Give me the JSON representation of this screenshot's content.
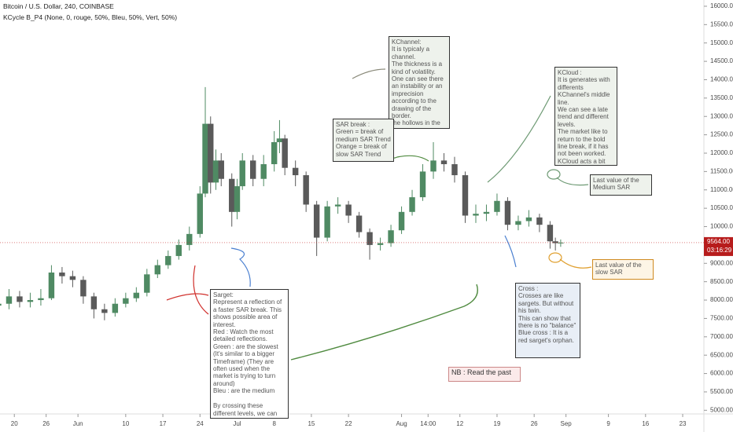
{
  "chart_data": {
    "type": "candlestick",
    "title": "Bitcoin / U.S. Dollar, 240, COINBASE",
    "indicator": "KCycle B_P4 (None, 0, rouge, 50%, Bleu, 50%, Vert, 50%)",
    "up_color": "#4f8a63",
    "down_color": "#5a5a5a",
    "x": [
      17,
      19,
      21,
      23,
      25,
      27,
      29,
      31,
      33,
      35,
      37,
      39,
      41,
      43,
      45,
      47,
      49,
      51,
      53,
      55,
      56,
      57,
      58,
      59,
      61,
      62,
      63,
      65,
      67,
      69,
      70,
      71,
      73,
      75,
      77,
      79,
      81,
      83,
      85,
      87,
      89,
      91,
      93,
      95,
      97,
      99,
      101,
      103,
      105,
      107,
      109,
      111,
      113,
      115,
      117,
      119,
      121,
      122,
      123
    ],
    "open": [
      7850,
      7900,
      8100,
      7950,
      8000,
      8050,
      8750,
      8650,
      8550,
      8100,
      7750,
      7650,
      7900,
      8050,
      8200,
      8700,
      8950,
      9200,
      9500,
      9800,
      10900,
      12800,
      11200,
      11800,
      11300,
      10400,
      11100,
      11800,
      11300,
      11700,
      12300,
      12400,
      11600,
      11400,
      10600,
      9700,
      10550,
      10600,
      10300,
      9850,
      9500,
      9550,
      9900,
      10400,
      10800,
      11500,
      11800,
      11700,
      11400,
      10300,
      10350,
      10400,
      10700,
      10050,
      10150,
      10250,
      10050,
      9600,
      9550
    ],
    "high": [
      8150,
      8300,
      8250,
      8200,
      8300,
      8950,
      8900,
      8800,
      8650,
      8200,
      7900,
      8050,
      8200,
      8350,
      8850,
      9100,
      9350,
      9650,
      10000,
      11100,
      13800,
      13000,
      12100,
      12000,
      11450,
      11300,
      12000,
      11950,
      11950,
      12600,
      12900,
      12500,
      11800,
      11500,
      10700,
      10700,
      10800,
      10700,
      10400,
      9950,
      9700,
      10050,
      10550,
      11000,
      11700,
      12300,
      12000,
      11900,
      11500,
      10600,
      10600,
      10900,
      10800,
      10300,
      10450,
      10350,
      10150,
      9700,
      9650
    ],
    "low": [
      7650,
      7750,
      7800,
      7800,
      7850,
      8000,
      8450,
      8350,
      7900,
      7500,
      7450,
      7550,
      7800,
      7950,
      8100,
      8600,
      8850,
      9100,
      9350,
      9700,
      10800,
      10900,
      11000,
      11100,
      10000,
      10200,
      11000,
      11100,
      11100,
      11500,
      12000,
      11400,
      11100,
      10400,
      9200,
      9600,
      10350,
      10100,
      9700,
      9100,
      9350,
      9450,
      9800,
      10300,
      10700,
      11300,
      11500,
      11200,
      10100,
      10100,
      10150,
      10300,
      9900,
      9900,
      10000,
      9850,
      9400,
      9350,
      9450
    ],
    "close": [
      7900,
      8100,
      7950,
      8000,
      8050,
      8750,
      8650,
      8550,
      8100,
      7750,
      7650,
      7900,
      8050,
      8200,
      8700,
      8950,
      9200,
      9500,
      9800,
      10900,
      12800,
      11200,
      11800,
      11300,
      10400,
      11100,
      11800,
      11300,
      11700,
      12300,
      12400,
      11600,
      11400,
      10600,
      9700,
      10550,
      10600,
      10300,
      9850,
      9500,
      9550,
      9900,
      10400,
      10800,
      11500,
      11800,
      11700,
      11400,
      10300,
      10350,
      10400,
      10700,
      10050,
      10150,
      10250,
      10050,
      9600,
      9550,
      9564
    ],
    "xlim": [
      17.3,
      150
    ],
    "xticks": [
      {
        "value": 20,
        "label": "20"
      },
      {
        "value": 26,
        "label": "26"
      },
      {
        "value": 32,
        "label": "Jun"
      },
      {
        "value": 41,
        "label": "10"
      },
      {
        "value": 48,
        "label": "17"
      },
      {
        "value": 55,
        "label": "24"
      },
      {
        "value": 62,
        "label": "Jul"
      },
      {
        "value": 69,
        "label": "8"
      },
      {
        "value": 76,
        "label": "15"
      },
      {
        "value": 83,
        "label": "22"
      },
      {
        "value": 93,
        "label": "Aug"
      },
      {
        "value": 98,
        "label": "14:00"
      },
      {
        "value": 104,
        "label": "12"
      },
      {
        "value": 111,
        "label": "19"
      },
      {
        "value": 118,
        "label": "26"
      },
      {
        "value": 124,
        "label": "Sep"
      },
      {
        "value": 132,
        "label": "9"
      },
      {
        "value": 139,
        "label": "16"
      },
      {
        "value": 146,
        "label": "23"
      }
    ],
    "ylim": [
      4900,
      16170
    ],
    "yticks": [
      {
        "value": 5000,
        "label": "5000.00"
      },
      {
        "value": 5500,
        "label": "5500.00"
      },
      {
        "value": 6000,
        "label": "6000.00"
      },
      {
        "value": 6500,
        "label": "6500.00"
      },
      {
        "value": 7000,
        "label": "7000.00"
      },
      {
        "value": 7500,
        "label": "7500.00"
      },
      {
        "value": 8000,
        "label": "8000.00"
      },
      {
        "value": 8500,
        "label": "8500.00"
      },
      {
        "value": 9000,
        "label": "9000.00"
      },
      {
        "value": 10000,
        "label": "10000.00"
      },
      {
        "value": 10500,
        "label": "10500.00"
      },
      {
        "value": 11000,
        "label": "11000.00"
      },
      {
        "value": 11500,
        "label": "11500.00"
      },
      {
        "value": 12000,
        "label": "12000.00"
      },
      {
        "value": 12500,
        "label": "12500.00"
      },
      {
        "value": 13000,
        "label": "13000.00"
      },
      {
        "value": 13500,
        "label": "13500.00"
      },
      {
        "value": 14000,
        "label": "14000.00"
      },
      {
        "value": 14500,
        "label": "14500.00"
      },
      {
        "value": 15000,
        "label": "15000.00"
      },
      {
        "value": 15500,
        "label": "15500.00"
      },
      {
        "value": 16000,
        "label": "16000.00"
      }
    ],
    "last_price": {
      "value": 9564,
      "label": "9564.00"
    },
    "countdown": "03:16:29",
    "annotations": [
      {
        "text": "KChannel:\nIt is typicaly a channel.\nThe thickness is a kind of volatility. One can see there an instability or an imprecision according to the drawing of the border.\nthe hollows in the thick edges can be a good horizontal level."
      },
      {
        "text": "SAR break :\nGreen = break of medium SAR Trend\nOrange = break of slow SAR Trend"
      },
      {
        "text": "KCloud :\nIt is generates with differents KChannel's middle line.\nWe can see a late trend and different levels.\nThe market like to return to the bold line break, if it has not been worked.\nKCloud acts a bit like a magnet..."
      },
      {
        "text": "Last value of the Medium SAR"
      },
      {
        "text": "Last value of  the slow SAR"
      },
      {
        "text": "Sarget:\nRepresent a reflection of a faster SAR break. This shows possible area of interest.\nRed : Watch the most detailed reflections.\nGreen : are the slowest (It's similar to a bigger Timeframe) (They are often used when the market is trying to turn around)\nBleu : are the medium\n\nBy crossing these different levels, we can find very interesting areas."
      },
      {
        "text": "Cross :\nCrosses are like sargets. But without his twin.\nThis can show that there is no \"balance\"\nBlue cross : It is a red sarget's orphan."
      },
      {
        "text": "NB : Read the past"
      }
    ]
  }
}
